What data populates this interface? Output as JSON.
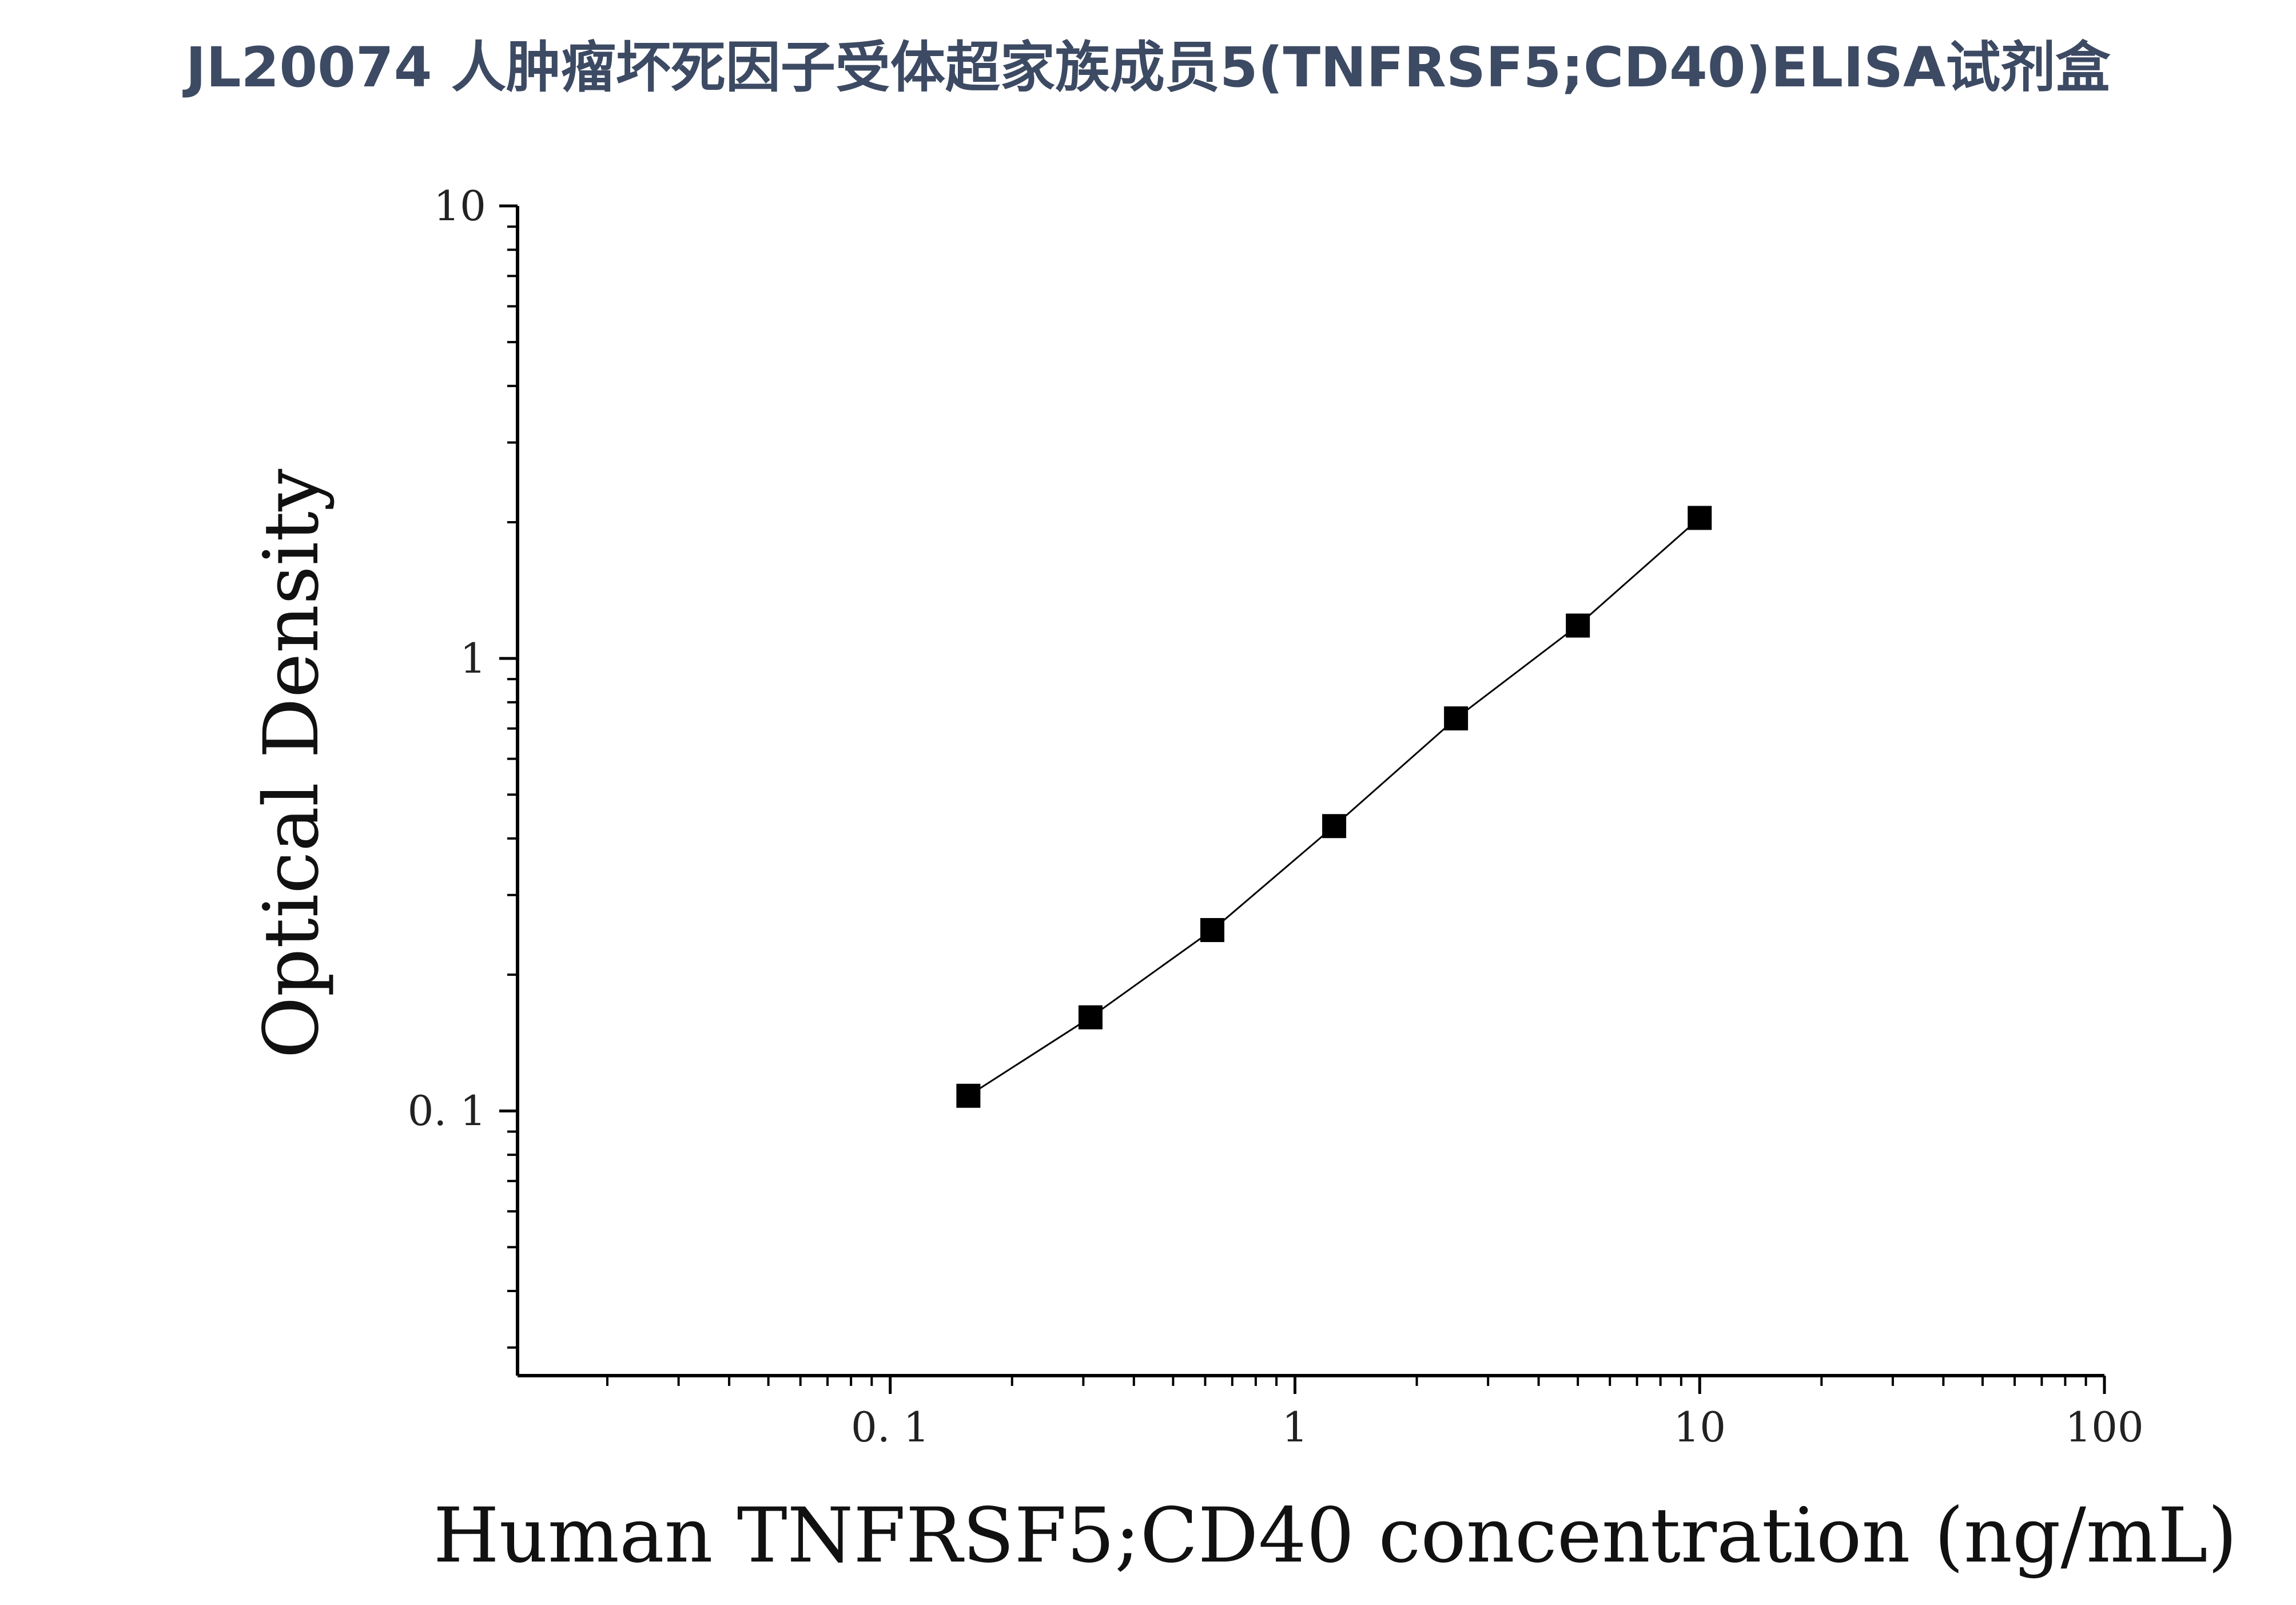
{
  "chart_data": {
    "type": "scatter",
    "title": "JL20074 人肿瘤坏死因子受体超家族成员5(TNFRSF5;CD40)ELISA试剂盒",
    "xlabel": "Human TNFRSF5;CD40 concentration (ng/mL)",
    "ylabel": "Optical Density",
    "x_scale": "log",
    "y_scale": "log",
    "xlim": [
      0.012,
      100
    ],
    "ylim": [
      0.026,
      10
    ],
    "x_ticks": [
      "0. 1",
      "1",
      "10",
      "100"
    ],
    "x_tick_values": [
      0.1,
      1,
      10,
      100
    ],
    "y_ticks": [
      "0. 1",
      "1",
      "10"
    ],
    "y_tick_values": [
      0.1,
      1,
      10
    ],
    "grid": false,
    "legend": "none",
    "marker": "square",
    "line_color": "#000000",
    "marker_color": "#000000",
    "series": [
      {
        "x": [
          0.156,
          0.3125,
          0.625,
          1.25,
          2.5,
          5,
          10
        ],
        "y": [
          0.108,
          0.161,
          0.251,
          0.426,
          0.737,
          1.182,
          2.044
        ]
      }
    ]
  }
}
